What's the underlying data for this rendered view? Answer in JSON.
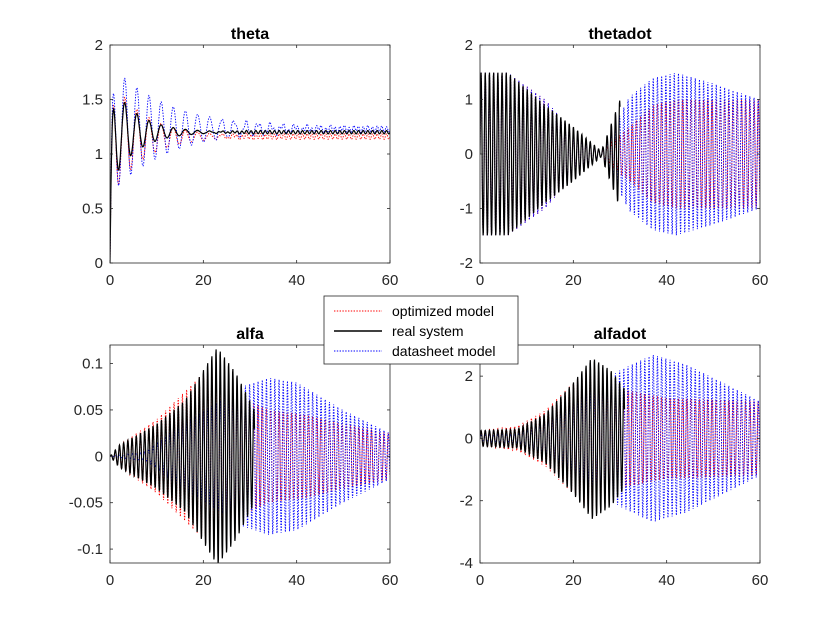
{
  "colors": {
    "optimized": "#ff0000",
    "real": "#000000",
    "datasheet": "#0000ff",
    "axis": "#262626"
  },
  "legend": {
    "placement": "center",
    "entries": [
      {
        "label": "optimized model",
        "color": "#ff0000",
        "style": "dotted"
      },
      {
        "label": "real system",
        "color": "#000000",
        "style": "solid"
      },
      {
        "label": "datasheet model",
        "color": "#0000ff",
        "style": "dotted"
      }
    ]
  },
  "chart_data": [
    {
      "type": "line",
      "title": "theta",
      "xlabel": "",
      "ylabel": "",
      "xlim": [
        0,
        60
      ],
      "ylim": [
        0,
        2
      ],
      "xticks": [
        0,
        20,
        40,
        60
      ],
      "xticklabels": [
        "0",
        "20",
        "40",
        "60"
      ],
      "yticks": [
        0,
        0.5,
        1,
        1.5,
        2
      ],
      "yticklabels": [
        "0",
        "0.5",
        "1",
        "1.5",
        "2"
      ],
      "grid": false,
      "series": [
        {
          "name": "optimized model",
          "kind": "step_response",
          "final": 1.16,
          "peak": 1.72,
          "t_peak": 2.0,
          "decay": 0.14,
          "osc_amp": 0.03,
          "osc_period": 1.0,
          "osc_center": 1.16,
          "tail_amp": 0.025,
          "tail_from": 20,
          "grow_to": 30
        },
        {
          "name": "real system",
          "kind": "step_response",
          "final": 1.2,
          "peak": 1.68,
          "t_peak": 2.0,
          "decay": 0.18,
          "osc_amp": 0.02,
          "osc_period": 1.0,
          "osc_center": 1.2,
          "tail_amp": 0.015,
          "tail_from": 20,
          "grow_to": 30
        },
        {
          "name": "datasheet model",
          "kind": "step_response",
          "final": 1.23,
          "peak": 1.83,
          "t_peak": 2.0,
          "decay": 0.08,
          "osc_amp": 0.03,
          "osc_period": 1.0,
          "osc_center": 1.23,
          "tail_amp": 0.025,
          "tail_from": 20,
          "grow_to": 30
        }
      ]
    },
    {
      "type": "line",
      "title": "thetadot",
      "xlabel": "",
      "ylabel": "",
      "xlim": [
        0,
        60
      ],
      "ylim": [
        -2,
        2
      ],
      "xticks": [
        0,
        20,
        40,
        60
      ],
      "xticklabels": [
        "0",
        "20",
        "40",
        "60"
      ],
      "yticks": [
        -2,
        -1,
        0,
        1,
        2
      ],
      "yticklabels": [
        "-2",
        "-1",
        "0",
        "1",
        "2"
      ],
      "grid": false,
      "series": [
        {
          "name": "optimized model",
          "kind": "beating_oscillation",
          "envelope": [
            [
              0,
              1.5
            ],
            [
              6,
              1.5
            ],
            [
              14,
              1.0
            ],
            [
              20,
              0.4
            ],
            [
              26,
              0.05
            ],
            [
              32,
              0.5
            ],
            [
              37,
              0.9
            ],
            [
              42,
              1.0
            ],
            [
              60,
              1.0
            ]
          ],
          "period": 0.9
        },
        {
          "name": "real system",
          "kind": "beating_oscillation",
          "envelope": [
            [
              0,
              1.5
            ],
            [
              6,
              1.5
            ],
            [
              14,
              0.9
            ],
            [
              20,
              0.5
            ],
            [
              26,
              0.05
            ],
            [
              30,
              1.0
            ],
            [
              60,
              1.0
            ]
          ],
          "period": 0.9,
          "t_end": 30
        },
        {
          "name": "datasheet model",
          "kind": "beating_oscillation",
          "envelope": [
            [
              0,
              1.5
            ],
            [
              6,
              1.5
            ],
            [
              14,
              1.0
            ],
            [
              20,
              0.4
            ],
            [
              26,
              0.05
            ],
            [
              32,
              1.05
            ],
            [
              37,
              1.4
            ],
            [
              42,
              1.5
            ],
            [
              50,
              1.3
            ],
            [
              60,
              1.0
            ]
          ],
          "period": 0.9
        }
      ]
    },
    {
      "type": "line",
      "title": "alfa",
      "xlabel": "",
      "ylabel": "",
      "xlim": [
        0,
        60
      ],
      "ylim": [
        -0.115,
        0.12
      ],
      "xticks": [
        0,
        20,
        40,
        60
      ],
      "xticklabels": [
        "0",
        "20",
        "40",
        "60"
      ],
      "yticks": [
        -0.1,
        -0.05,
        0,
        0.05,
        0.1
      ],
      "yticklabels": [
        "-0.1",
        "-0.05",
        "0",
        "0.05",
        "0.1"
      ],
      "grid": false,
      "series": [
        {
          "name": "optimized model",
          "kind": "beating_oscillation",
          "envelope": [
            [
              0,
              0.0
            ],
            [
              2,
              0.012
            ],
            [
              10,
              0.04
            ],
            [
              16,
              0.07
            ],
            [
              22,
              0.1
            ],
            [
              30,
              0.06
            ],
            [
              34,
              0.05
            ],
            [
              42,
              0.045
            ],
            [
              50,
              0.035
            ],
            [
              60,
              0.025
            ]
          ],
          "period": 0.9
        },
        {
          "name": "real system",
          "kind": "beating_oscillation",
          "envelope": [
            [
              0,
              0.0
            ],
            [
              2,
              0.012
            ],
            [
              10,
              0.035
            ],
            [
              16,
              0.06
            ],
            [
              23,
              0.118
            ],
            [
              27,
              0.09
            ],
            [
              31,
              0.05
            ]
          ],
          "period": 0.9,
          "t_end": 31
        },
        {
          "name": "datasheet model",
          "kind": "beating_oscillation",
          "envelope": [
            [
              0,
              0.0
            ],
            [
              8,
              0.005
            ],
            [
              14,
              0.03
            ],
            [
              22,
              0.055
            ],
            [
              28,
              0.075
            ],
            [
              34,
              0.085
            ],
            [
              40,
              0.08
            ],
            [
              50,
              0.05
            ],
            [
              60,
              0.025
            ]
          ],
          "period": 0.9
        }
      ]
    },
    {
      "type": "line",
      "title": "alfadot",
      "xlabel": "",
      "ylabel": "",
      "xlim": [
        0,
        60
      ],
      "ylim": [
        -4,
        3
      ],
      "xticks": [
        0,
        20,
        40,
        60
      ],
      "xticklabels": [
        "0",
        "20",
        "40",
        "60"
      ],
      "yticks": [
        -4,
        -2,
        0,
        2
      ],
      "yticklabels": [
        "-4",
        "-2",
        "0",
        "2"
      ],
      "grid": false,
      "series": [
        {
          "name": "optimized model",
          "kind": "beating_oscillation",
          "envelope": [
            [
              0,
              0.25
            ],
            [
              8,
              0.4
            ],
            [
              14,
              0.9
            ],
            [
              20,
              1.8
            ],
            [
              24,
              2.4
            ],
            [
              30,
              1.6
            ],
            [
              40,
              1.3
            ],
            [
              60,
              1.2
            ]
          ],
          "period": 0.9
        },
        {
          "name": "real system",
          "kind": "beating_oscillation",
          "envelope": [
            [
              0,
              0.25
            ],
            [
              8,
              0.3
            ],
            [
              14,
              0.8
            ],
            [
              20,
              1.8
            ],
            [
              24,
              2.6
            ],
            [
              28,
              2.2
            ],
            [
              31,
              1.6
            ]
          ],
          "period": 0.9,
          "t_end": 31
        },
        {
          "name": "datasheet model",
          "kind": "beating_oscillation",
          "envelope": [
            [
              0,
              0.1
            ],
            [
              8,
              0.15
            ],
            [
              14,
              0.6
            ],
            [
              22,
              1.4
            ],
            [
              30,
              2.2
            ],
            [
              37,
              2.7
            ],
            [
              44,
              2.4
            ],
            [
              52,
              1.8
            ],
            [
              60,
              1.2
            ]
          ],
          "period": 0.9
        }
      ]
    }
  ]
}
